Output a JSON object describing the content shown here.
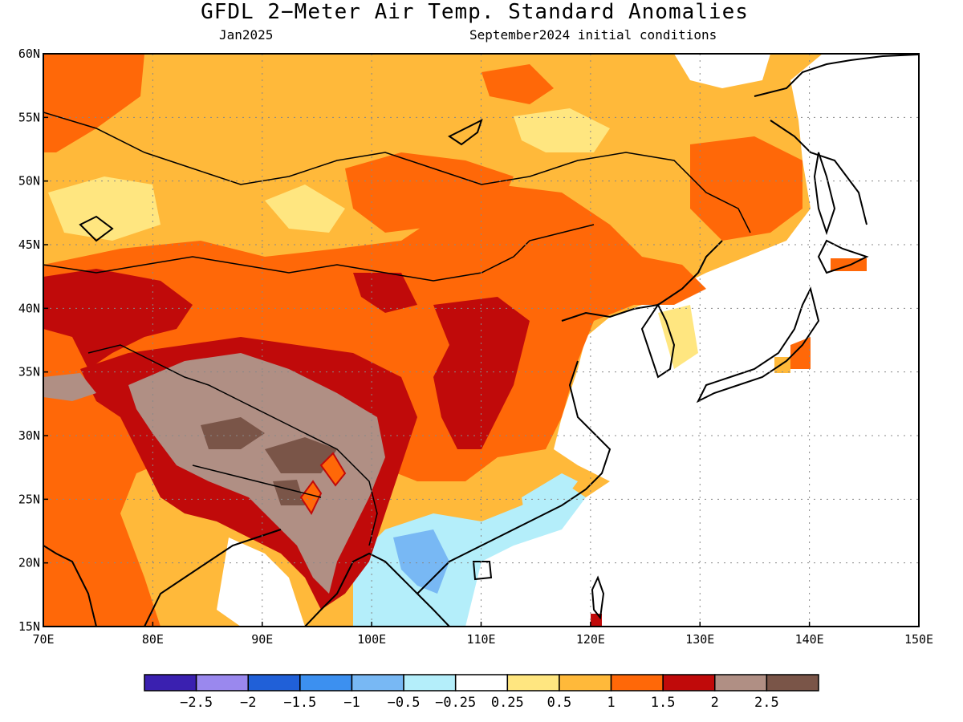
{
  "title": "GFDL 2−Meter Air Temp. Standard Anomalies",
  "subtitle_left": "Jan2025",
  "subtitle_right": "September2024 initial conditions",
  "map": {
    "projection": "equirectangular",
    "lon_range": [
      70,
      150
    ],
    "lat_range": [
      15,
      60
    ],
    "lon_ticks": [
      "70E",
      "80E",
      "90E",
      "100E",
      "110E",
      "120E",
      "130E",
      "140E",
      "150E"
    ],
    "lat_ticks": [
      "15N",
      "20N",
      "25N",
      "30N",
      "35N",
      "40N",
      "45N",
      "50N",
      "55N",
      "60N"
    ],
    "gridlines": "dotted",
    "missing_color": "#ffffff"
  },
  "colorbar": {
    "colors": [
      "#3a20b0",
      "#9a88ee",
      "#2060d8",
      "#3c90f0",
      "#78b8f4",
      "#b4eefa",
      "#ffffff",
      "#ffe680",
      "#ffb93a",
      "#ff6808",
      "#c00a0a",
      "#b08f84",
      "#7a5548"
    ],
    "labels": [
      "−2.5",
      "−2",
      "−1.5",
      "−1",
      "−0.5",
      "−0.25",
      "0.25",
      "0.5",
      "1",
      "1.5",
      "2",
      "2.5"
    ]
  }
}
